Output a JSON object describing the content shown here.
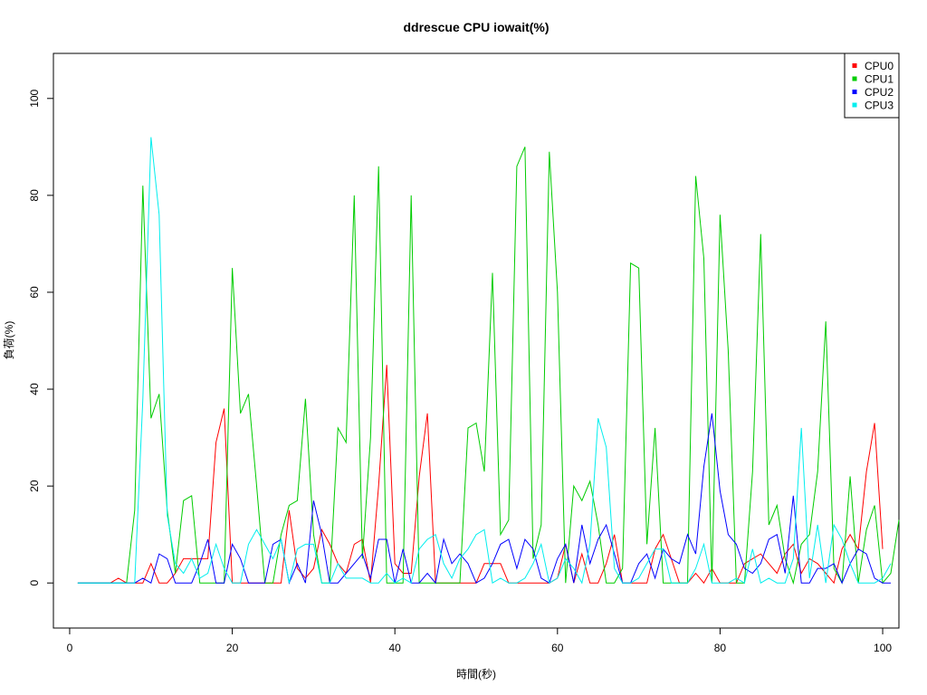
{
  "chart_data": {
    "type": "line",
    "title": "ddrescue CPU iowait(%)",
    "xlabel": "時間(秒)",
    "ylabel": "負荷(%)",
    "xlim": [
      -2,
      102
    ],
    "ylim": [
      -9.3,
      109.3
    ],
    "xticks": [
      0,
      20,
      40,
      60,
      80,
      100
    ],
    "yticks": [
      0,
      20,
      40,
      60,
      80,
      100
    ],
    "grid": false,
    "legend_position": "top-right",
    "x_start": 1,
    "series": [
      {
        "name": "CPU0",
        "color": "#ff0000",
        "values": [
          0,
          0,
          0,
          0,
          0,
          1,
          0,
          0,
          0,
          4,
          0,
          0,
          2,
          5,
          5,
          5,
          5,
          29,
          36,
          0,
          0,
          0,
          0,
          0,
          0,
          0,
          15,
          3,
          1,
          3,
          11,
          8,
          4,
          2,
          8,
          9,
          0,
          20,
          45,
          4,
          2,
          2,
          22,
          35,
          0,
          0,
          0,
          0,
          0,
          0,
          4,
          4,
          4,
          0,
          0,
          0,
          0,
          0,
          0,
          1,
          8,
          0,
          6,
          0,
          0,
          4,
          10,
          0,
          0,
          0,
          0,
          7,
          10,
          5,
          0,
          0,
          2,
          0,
          3,
          0,
          0,
          0,
          4,
          5,
          6,
          4,
          2,
          6,
          8,
          2,
          5,
          4,
          2,
          0,
          7,
          10,
          7,
          23,
          33,
          7
        ]
      },
      {
        "name": "CPU1",
        "color": "#00cc00",
        "values": [
          0,
          0,
          0,
          0,
          0,
          0,
          0,
          15,
          82,
          34,
          39,
          15,
          2,
          17,
          18,
          0,
          0,
          0,
          0,
          65,
          35,
          39,
          20,
          0,
          0,
          10,
          16,
          17,
          38,
          10,
          0,
          0,
          32,
          29,
          80,
          5,
          30,
          86,
          0,
          0,
          0,
          80,
          0,
          0,
          0,
          0,
          0,
          0,
          32,
          33,
          23,
          64,
          10,
          13,
          86,
          90,
          5,
          12,
          89,
          60,
          0,
          20,
          17,
          21,
          12,
          0,
          0,
          3,
          66,
          65,
          8,
          32,
          0,
          0,
          0,
          0,
          84,
          67,
          0,
          76,
          48,
          0,
          0,
          23,
          72,
          12,
          16,
          5,
          0,
          8,
          10,
          23,
          54,
          3,
          0,
          22,
          0,
          11,
          16,
          0,
          2,
          13
        ]
      },
      {
        "name": "CPU2",
        "color": "#0000ff",
        "values": [
          0,
          0,
          0,
          0,
          0,
          0,
          0,
          0,
          1,
          0,
          6,
          5,
          0,
          0,
          0,
          4,
          9,
          0,
          0,
          8,
          5,
          0,
          0,
          0,
          8,
          9,
          0,
          4,
          0,
          17,
          10,
          0,
          0,
          2,
          4,
          6,
          1,
          9,
          9,
          0,
          7,
          0,
          0,
          2,
          0,
          9,
          4,
          6,
          4,
          0,
          1,
          4,
          8,
          9,
          3,
          9,
          7,
          1,
          0,
          5,
          8,
          0,
          12,
          4,
          9,
          12,
          6,
          0,
          0,
          4,
          6,
          1,
          7,
          5,
          4,
          10,
          6,
          24,
          35,
          19,
          10,
          8,
          3,
          2,
          4,
          9,
          10,
          2,
          18,
          0,
          0,
          3,
          3,
          4,
          0,
          4,
          7,
          6,
          1,
          0,
          0
        ]
      },
      {
        "name": "CPU3",
        "color": "#00eeee",
        "values": [
          0,
          0,
          0,
          0,
          0,
          0,
          0,
          0,
          38,
          92,
          76,
          14,
          4,
          2,
          5,
          1,
          2,
          8,
          3,
          0,
          0,
          8,
          11,
          8,
          5,
          9,
          0,
          7,
          8,
          8,
          0,
          0,
          4,
          1,
          1,
          1,
          0,
          0,
          2,
          0,
          1,
          0,
          7,
          9,
          10,
          4,
          1,
          5,
          7,
          10,
          11,
          0,
          1,
          0,
          0,
          1,
          4,
          8,
          0,
          1,
          5,
          3,
          0,
          8,
          34,
          28,
          3,
          0,
          0,
          1,
          4,
          7,
          7,
          0,
          0,
          0,
          3,
          8,
          0,
          0,
          0,
          1,
          0,
          7,
          0,
          1,
          0,
          0,
          5,
          32,
          1,
          12,
          0,
          12,
          9,
          4,
          0,
          0,
          0,
          1,
          4
        ]
      }
    ]
  }
}
